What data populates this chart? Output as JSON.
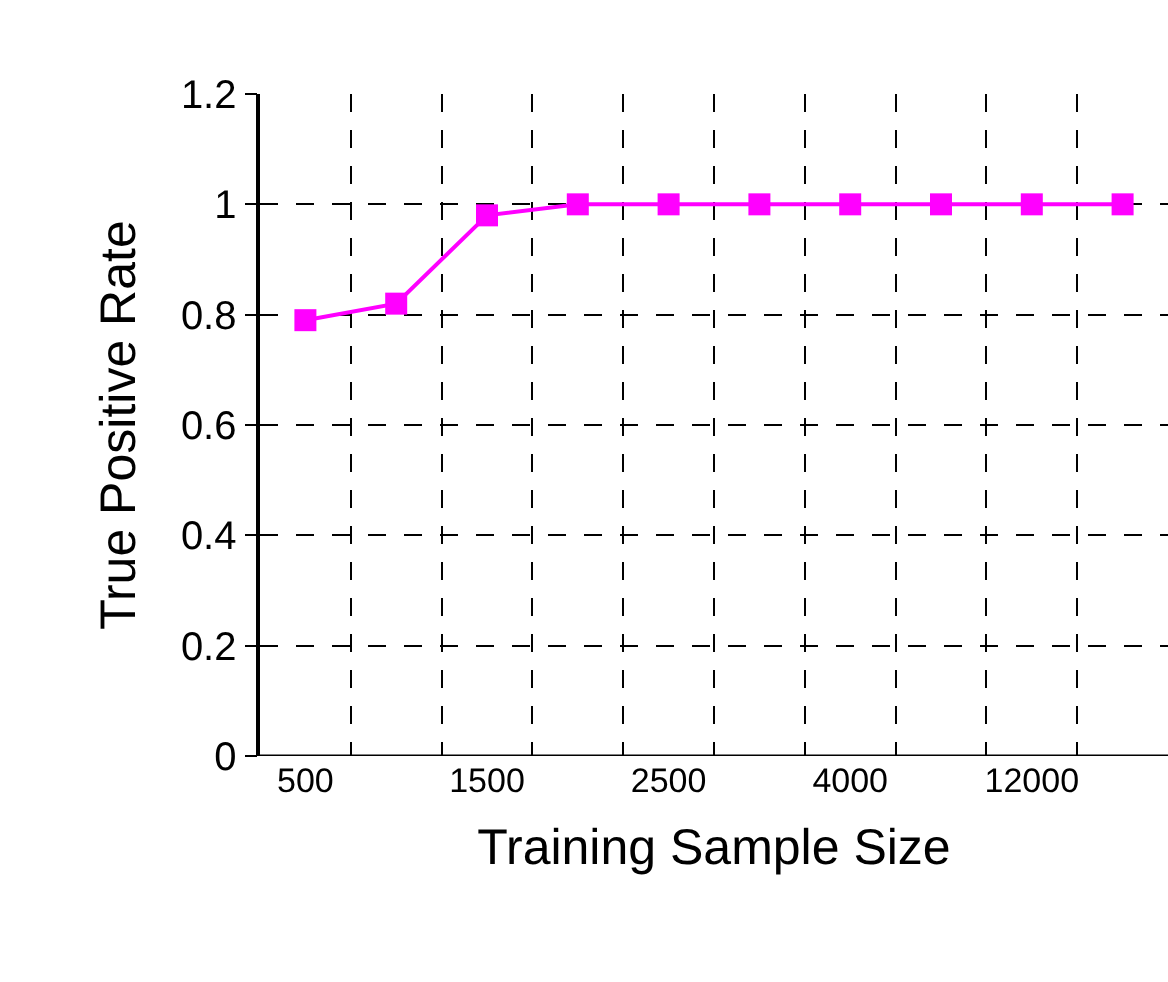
{
  "chart_data": {
    "type": "line",
    "xlabel": "Training Sample Size",
    "ylabel": "True Positive Rate",
    "categories": [
      "500",
      null,
      "1500",
      null,
      "2500",
      null,
      "4000",
      null,
      "12000",
      null
    ],
    "series": [
      {
        "color": "#ff00ff",
        "values": [
          0.79,
          0.82,
          0.98,
          1,
          1,
          1,
          1,
          1,
          1,
          1
        ]
      }
    ],
    "ylim": [
      0,
      1.2
    ],
    "yticks": [
      0,
      0.2,
      0.4,
      0.6,
      0.8,
      1,
      1.2
    ],
    "grid": true,
    "marker": "square",
    "line_style": "solid",
    "legend": false
  }
}
